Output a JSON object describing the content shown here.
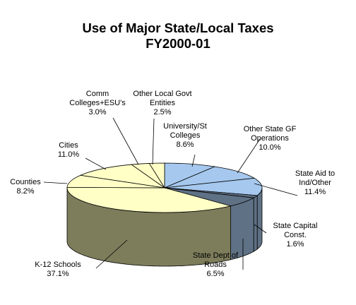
{
  "chart_data": {
    "type": "pie",
    "style": "3d",
    "title_lines": [
      "Use of Major State/Local Taxes",
      "FY2000-01"
    ],
    "slices": [
      {
        "label_lines": [
          "University/St",
          "Colleges"
        ],
        "value": 8.6,
        "value_text": "8.6%",
        "color": "#a6c8ee"
      },
      {
        "label_lines": [
          "Other State GF",
          "Operations"
        ],
        "value": 10.0,
        "value_text": "10.0%",
        "color": "#a6c8ee"
      },
      {
        "label_lines": [
          "State Aid to",
          "Ind/Other"
        ],
        "value": 11.4,
        "value_text": "11.4%",
        "color": "#a6c8ee"
      },
      {
        "label_lines": [
          "State Capital",
          "Const."
        ],
        "value": 1.6,
        "value_text": "1.6%",
        "color": "#5f7185"
      },
      {
        "label_lines": [
          "State Dept of",
          "Roads"
        ],
        "value": 6.5,
        "value_text": "6.5%",
        "color": "#5f7185"
      },
      {
        "label_lines": [
          "K-12 Schools"
        ],
        "value": 37.1,
        "value_text": "37.1%",
        "color": "#ffffc6"
      },
      {
        "label_lines": [
          "Counties"
        ],
        "value": 8.2,
        "value_text": "8.2%",
        "color": "#ffffc6"
      },
      {
        "label_lines": [
          "Cities"
        ],
        "value": 11.0,
        "value_text": "11.0%",
        "color": "#ffffc6"
      },
      {
        "label_lines": [
          "Comm",
          "Colleges+ESU's"
        ],
        "value": 3.0,
        "value_text": "3.0%",
        "color": "#ffffc6"
      },
      {
        "label_lines": [
          "Other Local Govt",
          "Entities"
        ],
        "value": 2.5,
        "value_text": "2.5%",
        "color": "#ffffc6"
      }
    ],
    "side_colors": {
      "blue": "#5f7185",
      "yellow": "#7d7d5c"
    }
  }
}
